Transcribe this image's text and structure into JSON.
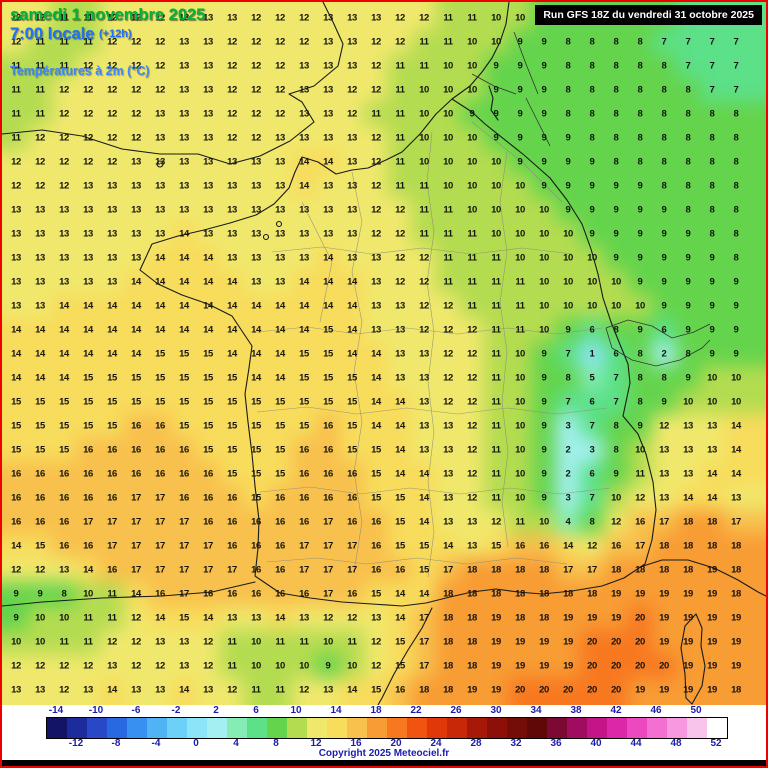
{
  "header": {
    "date_line": "samedi 1 novembre 2025",
    "time_line": "7:00 locale",
    "time_offset": "(+12h)",
    "parameter": "Températures à 2m (°C)",
    "run_info": "Run GFS 18Z du vendredi 31 octobre 2025"
  },
  "footer": {
    "copyright": "Copyright 2025 Meteociel.fr"
  },
  "colors": {
    "frame_red": "#ee0000",
    "date_green": "#00b33c",
    "time_blue": "#1f6fff",
    "parameter_blue": "#3a86ff",
    "legend_label_blue": "#1b1bb0",
    "runbox_bg": "#000000",
    "runbox_text": "#ffffff",
    "number_text": "#141414"
  },
  "legend": {
    "unit": "°C",
    "min": -14,
    "max": 52,
    "step": 2,
    "labels_top": [
      "-14",
      "-10",
      "-6",
      "-2",
      "2",
      "6",
      "10",
      "14",
      "18",
      "22",
      "26",
      "30",
      "34",
      "38",
      "42",
      "46",
      "50"
    ],
    "labels_bottom": [
      "-12",
      "-8",
      "-4",
      "0",
      "4",
      "8",
      "12",
      "16",
      "20",
      "24",
      "28",
      "32",
      "36",
      "40",
      "44",
      "48",
      "52"
    ],
    "colors": [
      "#141464",
      "#1c2c9c",
      "#2848c8",
      "#2868e0",
      "#3890f0",
      "#50b4f4",
      "#6cd0f8",
      "#8ce4f8",
      "#a4f0f0",
      "#84ecb4",
      "#5ce088",
      "#64d44c",
      "#b4dc50",
      "#f0e86c",
      "#f8dc5c",
      "#f8c04c",
      "#f89c34",
      "#f87820",
      "#f05410",
      "#e03808",
      "#c82808",
      "#a81808",
      "#8c1008",
      "#740c08",
      "#600808",
      "#7c0834",
      "#a00c60",
      "#c41488",
      "#dc28a8",
      "#ec48c0",
      "#f470d0",
      "#f898e0",
      "#f8c4ec",
      "#ffffff"
    ]
  },
  "map_grid": {
    "rows": [
      "12 12 11 11 12 12 12 13 13 13 12 12 12 13 13 13 12 12 11 11 10 10 9 9 8 8 8 8 7 7 7",
      "12 11 11 11 12 12 12 13 13 12 12 12 12 13 13 12 12 11 11 10 10 9 9 8 8 8 8 7 7 7 7",
      "11 11 11 12 12 12 12 13 13 12 12 12 13 13 13 12 11 11 10 10 9 9 9 8 8 8 8 8 7 7 7",
      "11 11 12 12 12 12 12 13 13 12 12 12 13 13 12 12 11 10 10 10 9 9 9 8 8 8 8 8 8 7 7",
      "11 11 12 12 12 12 13 13 13 12 12 12 13 13 12 11 11 10 10 9 9 9 9 8 8 8 8 8 8 8 8",
      "11 12 12 12 12 12 13 13 13 12 12 13 13 13 13 12 11 10 10 10 9 9 9 9 8 8 8 8 8 8 8",
      "12 12 12 12 12 13 13 13 13 13 13 13 14 14 13 12 11 10 10 10 10 9 9 9 9 8 8 8 8 8 8",
      "12 12 12 13 13 13 13 13 13 13 13 13 14 13 13 12 11 11 10 10 10 10 9 9 9 9 9 8 8 8 8",
      "13 13 13 13 13 13 13 13 13 13 13 13 13 13 13 12 12 11 11 10 10 10 10 9 9 9 9 9 8 8 8",
      "13 13 13 13 13 13 13 14 13 13 13 13 13 13 13 12 12 11 11 11 10 10 10 10 9 9 9 9 9 8 8",
      "13 13 13 13 13 13 14 14 14 13 13 13 13 14 13 13 12 12 11 11 11 10 10 10 10 9 9 9 9 9 8",
      "13 13 13 13 13 14 14 14 14 14 13 13 14 14 14 13 12 12 11 11 11 11 10 10 10 10 9 9 9 9 9",
      "13 13 14 14 14 14 14 14 14 14 14 14 14 14 14 13 13 12 12 11 11 11 10 10 10 10 10 9 9 9 9",
      "14 14 14 14 14 14 14 14 14 14 14 14 14 15 14 13 13 12 12 12 11 11 10 9 6 8 9 6 9 9 9",
      "14 14 14 14 14 14 15 15 15 14 14 14 15 15 14 14 13 13 12 12 11 10 9 7 1 6 8 2 8 9 9",
      "14 14 14 15 15 15 15 15 15 15 14 14 15 15 15 14 13 13 12 12 11 10 9 8 5 7 8 8 9 10 10",
      "15 15 15 15 15 15 15 15 15 15 15 15 15 15 15 14 14 13 12 12 11 10 9 7 6 7 8 9 10 10 10",
      "15 15 15 15 15 16 16 15 15 15 15 15 15 16 15 14 14 13 13 12 11 10 9 3 7 8 9 12 13 13 14",
      "15 15 15 16 16 16 16 16 15 15 15 15 16 16 15 15 14 13 13 12 11 10 9 2 3 8 10 13 13 13 14",
      "16 16 16 16 16 16 16 16 16 15 15 15 16 16 16 15 14 14 13 12 11 10 9 2 6 9 11 13 13 14 14",
      "16 16 16 16 16 17 17 16 16 16 15 16 16 16 16 15 15 14 13 12 11 10 9 3 7 10 12 13 14 14 13",
      "16 16 16 17 17 17 17 17 16 16 16 16 16 17 16 16 15 14 13 13 12 11 10 4 8 12 16 17 18 18 17",
      "14 15 16 16 17 17 17 17 17 16 16 16 17 17 17 16 15 15 14 13 15 16 16 14 12 16 17 18 18 18 18",
      "12 12 13 14 16 17 17 17 17 17 16 16 17 17 17 16 16 15 17 18 18 18 18 17 17 18 18 18 18 19 18",
      "9 9 8 10 11 14 16 17 16 16 16 16 16 17 16 15 14 14 18 18 18 18 18 18 18 19 19 19 19 19 18",
      "9 10 10 11 11 12 14 15 14 13 13 14 13 12 12 13 14 17 18 18 19 18 18 19 19 19 20 19 19 19 19",
      "10 10 11 11 12 12 13 13 12 11 10 11 11 10 11 12 15 17 18 18 19 19 19 19 20 20 20 19 19 19 19",
      "12 12 12 12 13 12 12 13 12 11 10 10 10 9 10 12 15 17 18 18 19 19 19 19 20 20 20 20 19 19 19",
      "13 13 12 13 14 13 13 14 13 12 11 11 12 13 14 15 16 18 18 19 19 20 20 20 20 20 19 19 19 19 18"
    ]
  }
}
